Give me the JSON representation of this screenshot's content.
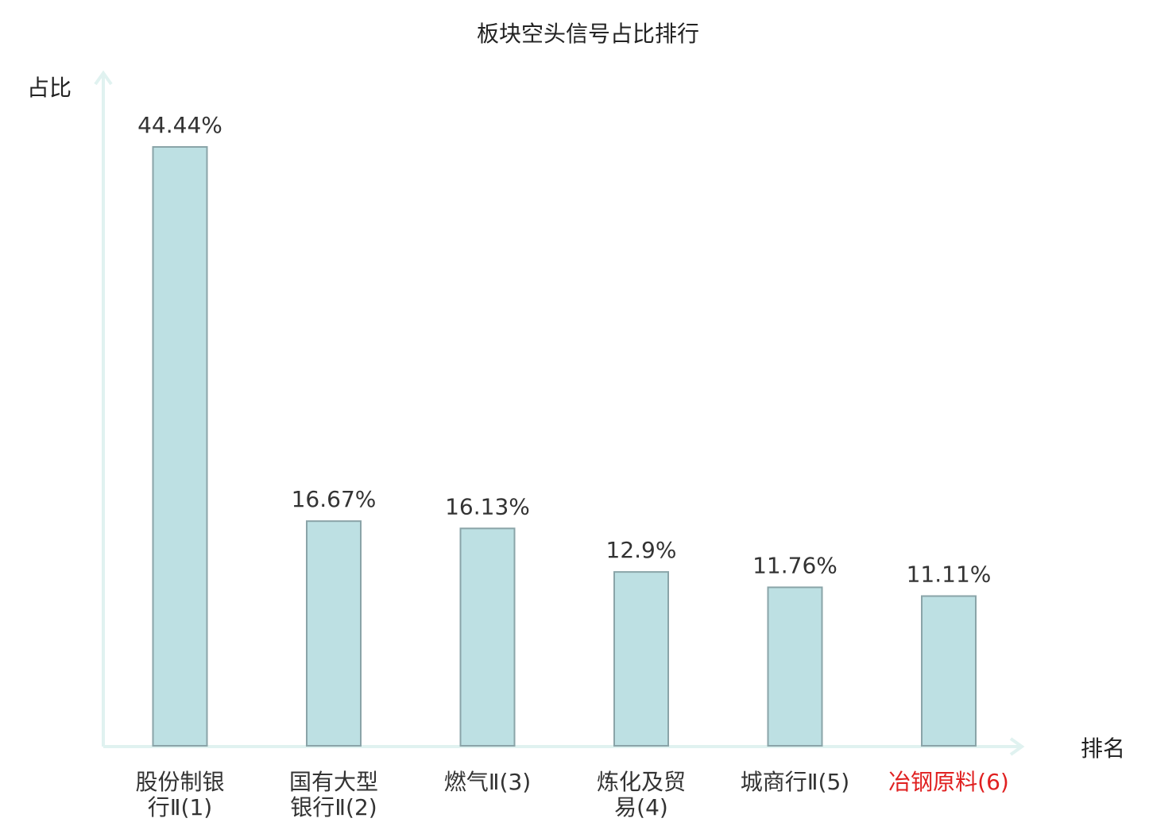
{
  "chart_data": {
    "type": "bar",
    "title": "板块空头信号占比排行",
    "ylabel": "占比",
    "xlabel": "排名",
    "ylim": [
      0,
      50
    ],
    "grid": false,
    "categories": [
      [
        "股份制银",
        "行Ⅱ(1)"
      ],
      [
        "国有大型",
        "银行Ⅱ(2)"
      ],
      [
        "燃气Ⅱ(3)"
      ],
      [
        "炼化及贸",
        "易(4)"
      ],
      [
        "城商行Ⅱ(5)"
      ],
      [
        "冶钢原料(6)"
      ]
    ],
    "values": [
      44.44,
      16.67,
      16.13,
      12.9,
      11.76,
      11.11
    ],
    "value_labels": [
      "44.44%",
      "16.67%",
      "16.13%",
      "12.9%",
      "11.76%",
      "11.11%"
    ],
    "highlight_index": 5,
    "colors": {
      "bar_fill": "#bde0e3",
      "bar_stroke": "#8aa4a8",
      "axis": "#e0f2f0",
      "text": "#333333",
      "highlight": "#e02020"
    }
  }
}
